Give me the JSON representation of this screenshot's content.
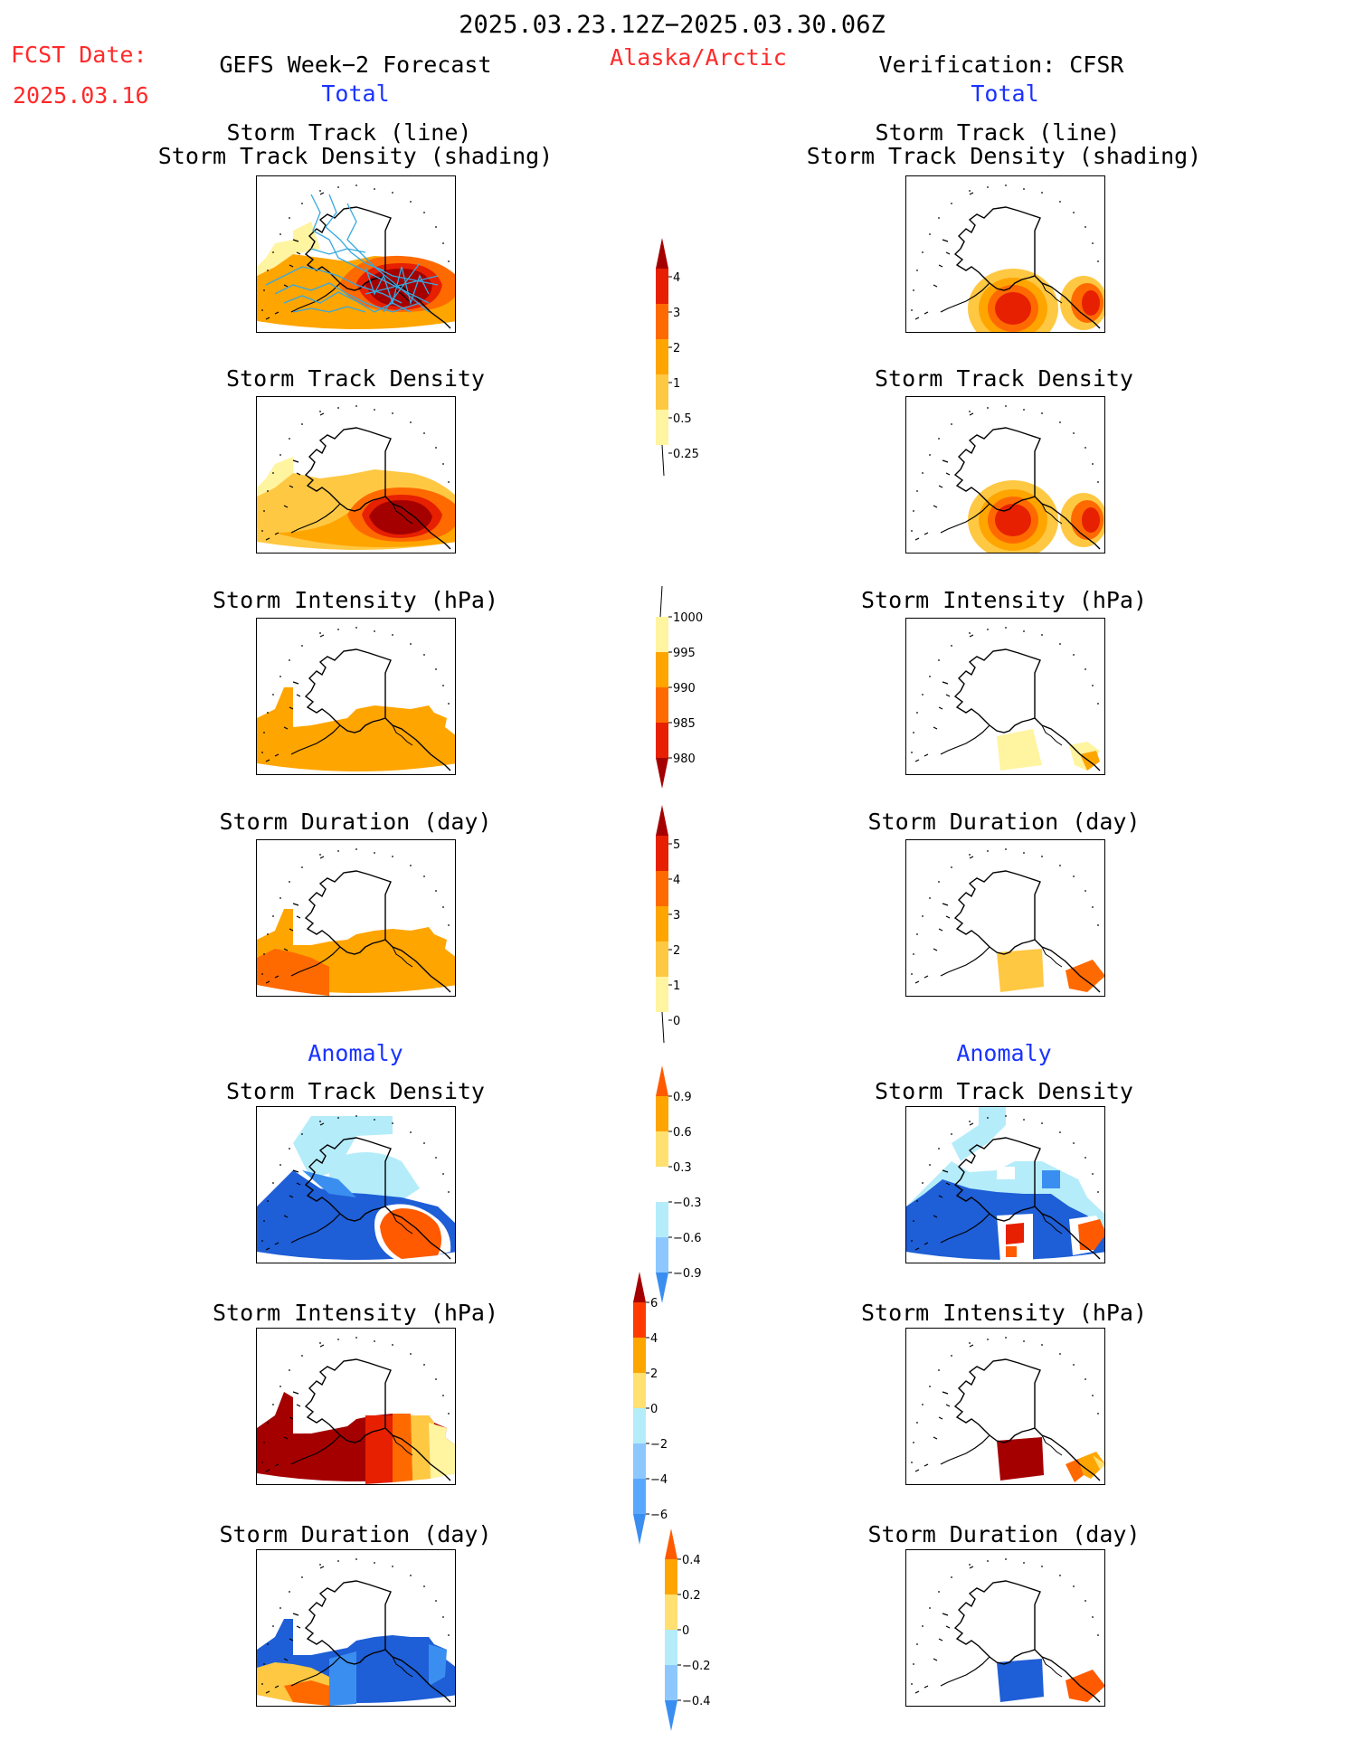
{
  "header": {
    "date_range": "2025.03.23.12Z−2025.03.30.06Z",
    "fcst_label": "FCST Date:",
    "fcst_date": "2025.03.16",
    "forecast_title": "GEFS Week−2 Forecast",
    "region": "Alaska/Arctic",
    "verification_title": "Verification: CFSR",
    "left_total": "Total",
    "right_total": "Total",
    "left_anomaly": "Anomaly",
    "right_anomaly": "Anomaly"
  },
  "panel_titles": {
    "track_line": "Storm Track (line)",
    "track_shading": "Storm Track Density (shading)",
    "density": "Storm Track Density",
    "intensity": "Storm Intensity (hPa)",
    "duration": "Storm Duration (day)"
  },
  "colorbars": {
    "density_total": {
      "labels": [
        "4",
        "3",
        "2",
        "1",
        "0.5",
        "0.25"
      ],
      "colors": [
        "#a50000",
        "#e62000",
        "#ff6a00",
        "#ffa500",
        "#ffc843",
        "#fff4a0"
      ]
    },
    "intensity_total": {
      "labels": [
        "1000",
        "995",
        "990",
        "985",
        "980"
      ],
      "colors": [
        "#fff4a0",
        "#ffa500",
        "#ff6a00",
        "#e62000",
        "#a50000"
      ]
    },
    "duration_total": {
      "labels": [
        "5",
        "4",
        "3",
        "2",
        "1",
        "0"
      ],
      "colors": [
        "#a50000",
        "#e62000",
        "#ff6a00",
        "#ffa500",
        "#ffc843",
        "#fff4a0"
      ]
    },
    "density_anom": {
      "labels": [
        "0.9",
        "0.6",
        "0.3",
        "−0.3",
        "−0.6",
        "−0.9"
      ],
      "colors": [
        "#ff5a00",
        "#ffa500",
        "#ffe070",
        "#ffffff",
        "#b4ecfa",
        "#8cc8ff",
        "#3a8ef0"
      ]
    },
    "intensity_anom": {
      "labels": [
        "6",
        "4",
        "2",
        "0",
        "−2",
        "−4",
        "−6"
      ],
      "colors": [
        "#a50000",
        "#ff3a00",
        "#ffa500",
        "#ffe070",
        "#b4ecfa",
        "#8cc8ff",
        "#58a8ff",
        "#3a8ef0"
      ]
    },
    "duration_anom": {
      "labels": [
        "0.4",
        "0.2",
        "0",
        "−0.2",
        "−0.4"
      ],
      "colors": [
        "#ff5a00",
        "#ffa500",
        "#ffe070",
        "#b4ecfa",
        "#8cc8ff",
        "#3a8ef0"
      ]
    }
  },
  "palette": {
    "dark_red": "#a50000",
    "red": "#e62000",
    "red_orange": "#ff6a00",
    "orange": "#ffa500",
    "light_orange": "#ffc843",
    "pale_yellow": "#fff4a0",
    "dark_blue": "#1e5ed6",
    "blue": "#3a8ef0",
    "light_blue": "#b4ecfa",
    "track_line": "#36a8e0"
  }
}
